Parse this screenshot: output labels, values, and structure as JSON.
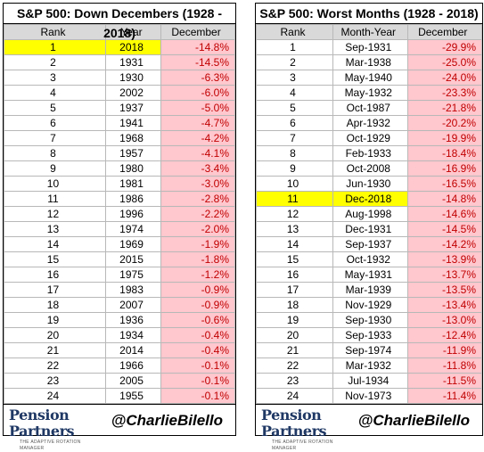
{
  "left": {
    "title": "S&P 500: Down Decembers (1928 - 2018)",
    "headers": [
      "Rank",
      "Year",
      "December"
    ],
    "highlight_rank": "1",
    "rows": [
      [
        "1",
        "2018",
        "-14.8%"
      ],
      [
        "2",
        "1931",
        "-14.5%"
      ],
      [
        "3",
        "1930",
        "-6.3%"
      ],
      [
        "4",
        "2002",
        "-6.0%"
      ],
      [
        "5",
        "1937",
        "-5.0%"
      ],
      [
        "6",
        "1941",
        "-4.7%"
      ],
      [
        "7",
        "1968",
        "-4.2%"
      ],
      [
        "8",
        "1957",
        "-4.1%"
      ],
      [
        "9",
        "1980",
        "-3.4%"
      ],
      [
        "10",
        "1981",
        "-3.0%"
      ],
      [
        "11",
        "1986",
        "-2.8%"
      ],
      [
        "12",
        "1996",
        "-2.2%"
      ],
      [
        "13",
        "1974",
        "-2.0%"
      ],
      [
        "14",
        "1969",
        "-1.9%"
      ],
      [
        "15",
        "2015",
        "-1.8%"
      ],
      [
        "16",
        "1975",
        "-1.2%"
      ],
      [
        "17",
        "1983",
        "-0.9%"
      ],
      [
        "18",
        "2007",
        "-0.9%"
      ],
      [
        "19",
        "1936",
        "-0.6%"
      ],
      [
        "20",
        "1934",
        "-0.4%"
      ],
      [
        "21",
        "2014",
        "-0.4%"
      ],
      [
        "22",
        "1966",
        "-0.1%"
      ],
      [
        "23",
        "2005",
        "-0.1%"
      ],
      [
        "24",
        "1955",
        "-0.1%"
      ]
    ]
  },
  "right": {
    "title": "S&P 500: Worst Months (1928 - 2018)",
    "headers": [
      "Rank",
      "Month-Year",
      "December"
    ],
    "highlight_rank": "11",
    "rows": [
      [
        "1",
        "Sep-1931",
        "-29.9%"
      ],
      [
        "2",
        "Mar-1938",
        "-25.0%"
      ],
      [
        "3",
        "May-1940",
        "-24.0%"
      ],
      [
        "4",
        "May-1932",
        "-23.3%"
      ],
      [
        "5",
        "Oct-1987",
        "-21.8%"
      ],
      [
        "6",
        "Apr-1932",
        "-20.2%"
      ],
      [
        "7",
        "Oct-1929",
        "-19.9%"
      ],
      [
        "8",
        "Feb-1933",
        "-18.4%"
      ],
      [
        "9",
        "Oct-2008",
        "-16.9%"
      ],
      [
        "10",
        "Jun-1930",
        "-16.5%"
      ],
      [
        "11",
        "Dec-2018",
        "-14.8%"
      ],
      [
        "12",
        "Aug-1998",
        "-14.6%"
      ],
      [
        "13",
        "Dec-1931",
        "-14.5%"
      ],
      [
        "14",
        "Sep-1937",
        "-14.2%"
      ],
      [
        "15",
        "Oct-1932",
        "-13.9%"
      ],
      [
        "16",
        "May-1931",
        "-13.7%"
      ],
      [
        "17",
        "Mar-1939",
        "-13.5%"
      ],
      [
        "18",
        "Nov-1929",
        "-13.4%"
      ],
      [
        "19",
        "Sep-1930",
        "-13.0%"
      ],
      [
        "20",
        "Sep-1933",
        "-12.4%"
      ],
      [
        "21",
        "Sep-1974",
        "-11.9%"
      ],
      [
        "22",
        "Mar-1932",
        "-11.8%"
      ],
      [
        "23",
        "Jul-1934",
        "-11.5%"
      ],
      [
        "24",
        "Nov-1973",
        "-11.4%"
      ]
    ]
  },
  "footer": {
    "logo_text": "Pension Partners",
    "logo_tagline": "THE ADAPTIVE ROTATION MANAGER",
    "handle": "@CharlieBilello"
  },
  "colors": {
    "negative_text": "#c00000",
    "negative_fill": "#ffc7ce",
    "highlight": "#ffff00",
    "header_fill": "#d9d9d9",
    "logo": "#1f3864"
  }
}
